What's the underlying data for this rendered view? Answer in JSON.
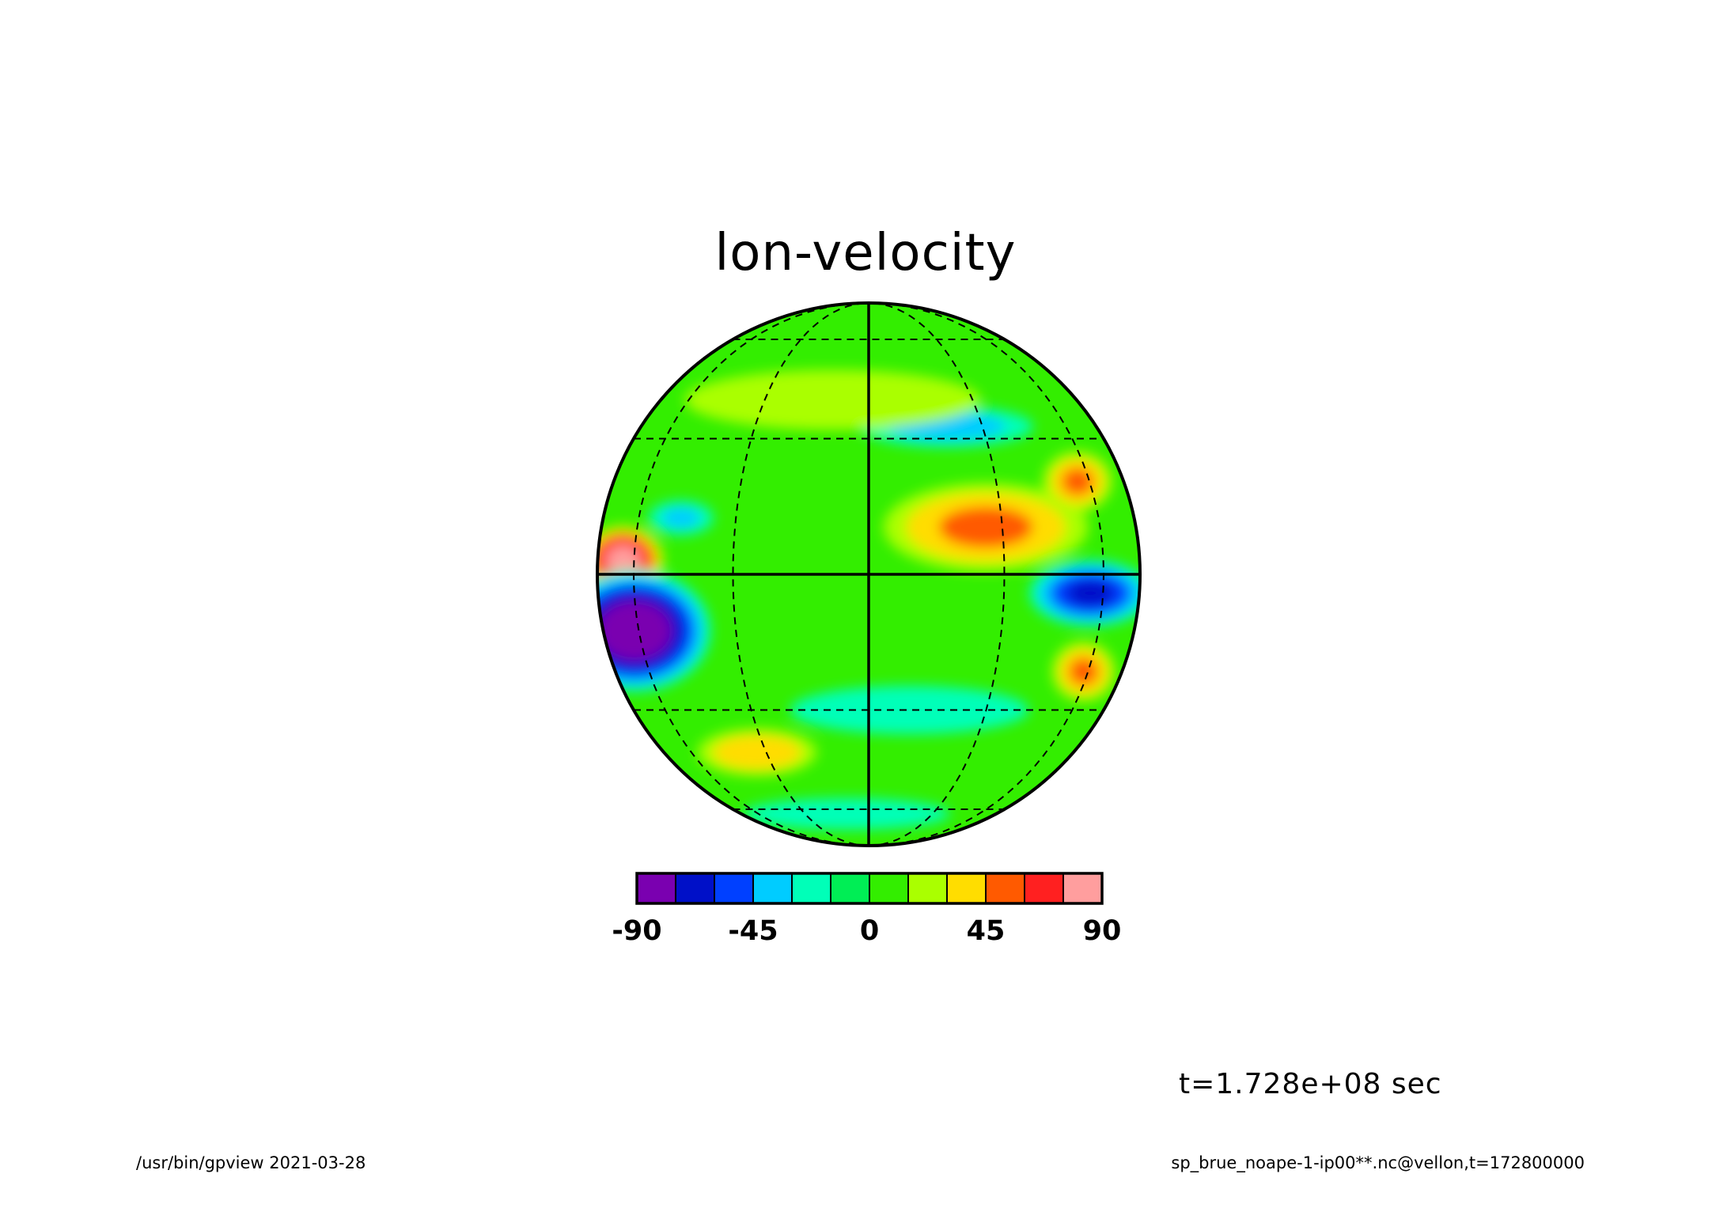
{
  "chart_data": {
    "type": "heatmap",
    "title": "lon-velocity",
    "projection": "orthographic",
    "graticule": "dashed",
    "colorbar": {
      "tick_labels": [
        "-90",
        "-45",
        "0",
        "45",
        "90"
      ],
      "tick_values": [
        -90,
        -45,
        0,
        45,
        90
      ],
      "levels": [
        -90,
        -75,
        -60,
        -45,
        -30,
        -15,
        0,
        15,
        30,
        45,
        60,
        75,
        90
      ],
      "colors": [
        "#7a00b0",
        "#0010c8",
        "#0040ff",
        "#00ccff",
        "#00ffb8",
        "#00ee55",
        "#33ee00",
        "#aaff00",
        "#ffdd00",
        "#ff5a00",
        "#ff2020",
        "#ff9e9e"
      ]
    },
    "anomalies": [
      {
        "lat": 3,
        "lon": -65,
        "value": 80,
        "dlat": 5,
        "dlon": 14
      },
      {
        "lat": -12,
        "lon": -62,
        "value": -85,
        "dlat": 9,
        "dlon": 24
      },
      {
        "lat": -4,
        "lon": 55,
        "value": -60,
        "dlat": 5,
        "dlon": 16
      },
      {
        "lat": 10,
        "lon": 26,
        "value": 45,
        "dlat": 7,
        "dlon": 18
      },
      {
        "lat": 20,
        "lon": 55,
        "value": 45,
        "dlat": 5,
        "dlon": 10
      },
      {
        "lat": -21,
        "lon": 58,
        "value": 45,
        "dlat": 5,
        "dlon": 10
      },
      {
        "lat": -41,
        "lon": -33,
        "value": 40,
        "dlat": 5,
        "dlon": 15
      },
      {
        "lat": 33,
        "lon": 20,
        "value": -35,
        "dlat": 4,
        "dlon": 18
      },
      {
        "lat": 12,
        "lon": -45,
        "value": -30,
        "dlat": 3,
        "dlon": 8
      },
      {
        "lat": 40,
        "lon": -10,
        "value": 25,
        "dlat": 7,
        "dlon": 35
      },
      {
        "lat": -30,
        "lon": 10,
        "value": -25,
        "dlat": 5,
        "dlon": 25
      },
      {
        "lat": -62,
        "lon": -10,
        "value": -25,
        "dlat": 6,
        "dlon": 40
      }
    ]
  },
  "labels": {
    "time": "t=1.728e+08 sec",
    "footer_left": "/usr/bin/gpview   2021-03-28",
    "footer_right": "sp_brue_noape-1-ip00**.nc@vellon,t=172800000"
  }
}
